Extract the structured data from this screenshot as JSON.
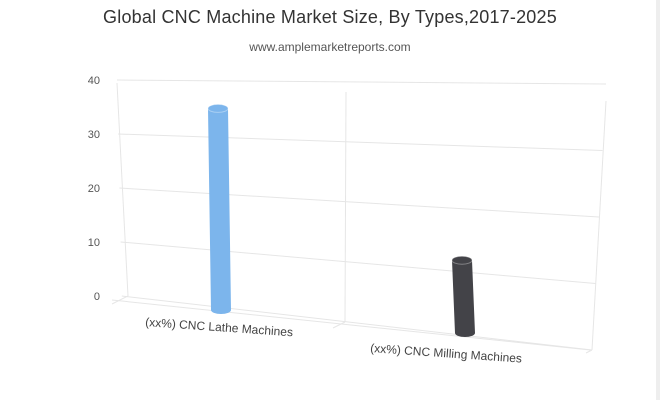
{
  "chart_data": {
    "type": "bar",
    "title": "Global CNC Machine Market Size, By Types,2017-2025",
    "subtitle": "www.amplemarketreports.com",
    "categories": [
      "(xx%) CNC Lathe Machines",
      "(xx%) CNC Milling Machines"
    ],
    "values": [
      36,
      13
    ],
    "series_colors": [
      "#7cb5ec",
      "#434348"
    ],
    "ylim": [
      0,
      40
    ],
    "yticks": [
      "0",
      "10",
      "20",
      "30",
      "40"
    ],
    "xlabel": "",
    "ylabel": "",
    "grid": true,
    "legend": "none"
  }
}
